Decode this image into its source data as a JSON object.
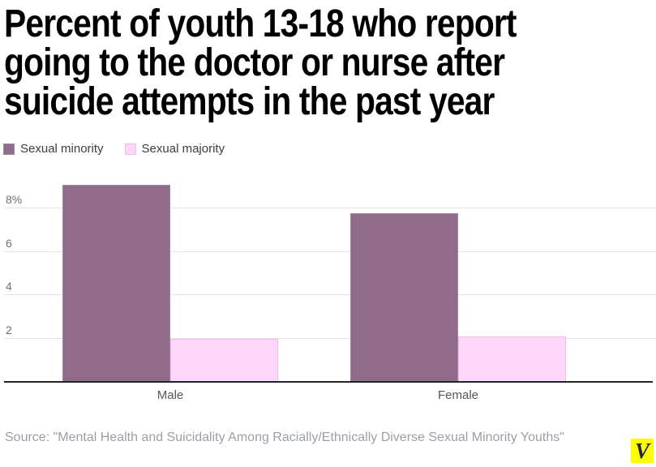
{
  "title": {
    "lines": [
      "Percent of youth 13-18 who report",
      "going to the doctor or nurse after",
      "suicide attempts in the past year"
    ]
  },
  "legend": {
    "items": [
      {
        "label": "Sexual minority",
        "color": "#906b8c",
        "border": "#a183a0"
      },
      {
        "label": "Sexual majority",
        "color": "#fed7fa",
        "border": "#f0bfe9"
      }
    ]
  },
  "chart_data": {
    "type": "bar",
    "title": "Percent of youth 13-18 who report going to the doctor or nurse after suicide attempts in the past year",
    "categories": [
      "Male",
      "Female"
    ],
    "series": [
      {
        "name": "Sexual minority",
        "color": "#906b8c",
        "border": "#a183a0",
        "values": [
          9.1,
          7.8
        ]
      },
      {
        "name": "Sexual majority",
        "color": "#fed7fa",
        "border": "#f0bfe9",
        "values": [
          2.0,
          2.1
        ]
      }
    ],
    "xlabel": "",
    "ylabel": "",
    "yticks": [
      {
        "value": 2,
        "label": "2"
      },
      {
        "value": 4,
        "label": "4"
      },
      {
        "value": 6,
        "label": "6"
      },
      {
        "value": 8,
        "label": "8%"
      }
    ],
    "ylim": [
      0,
      9.3
    ],
    "grid": true,
    "legend_position": "top-left",
    "unit": "percent"
  },
  "source": {
    "text": "Source: \"Mental Health and Suicidality Among Racially/Ethnically Diverse Sexual Minority Youths\""
  },
  "branding": {
    "logo_letter": "V",
    "logo_bg": "#fdff00",
    "logo_fg": "#26262e"
  }
}
